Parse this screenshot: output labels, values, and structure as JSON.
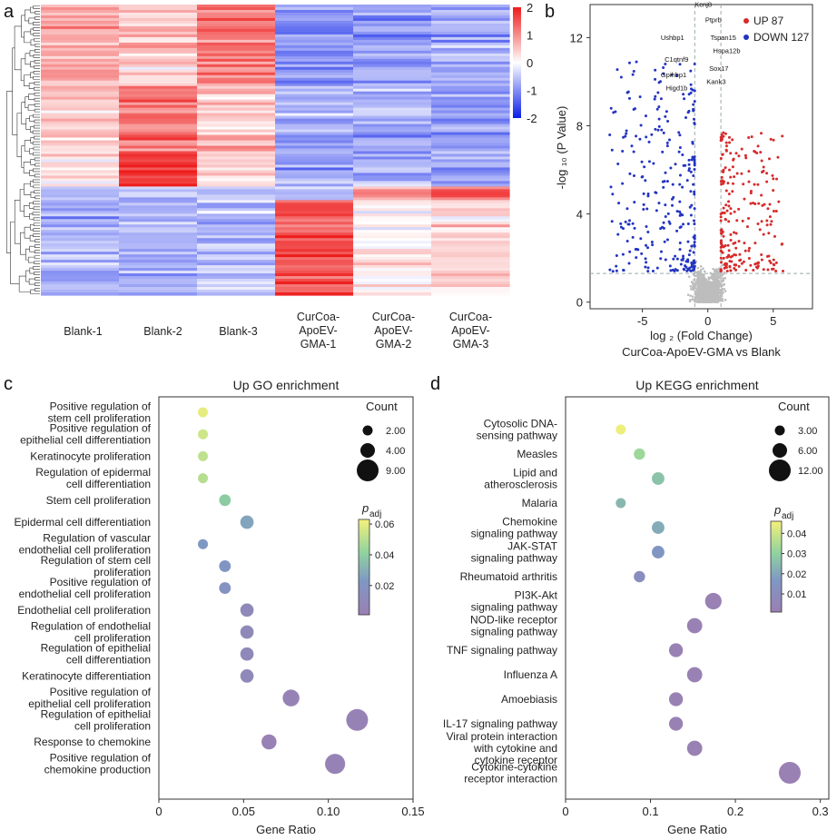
{
  "panel_letters": [
    "a",
    "b",
    "c",
    "d"
  ],
  "chart_data": [
    {
      "panel": "a",
      "type": "heatmap",
      "columns": [
        [
          "Blank-1"
        ],
        [
          "Blank-2"
        ],
        [
          "Blank-3"
        ],
        [
          "CurCoa-",
          "ApoEV-",
          "GMA-1"
        ],
        [
          "CurCoa-",
          "ApoEV-",
          "GMA-2"
        ],
        [
          "CurCoa-",
          "ApoEV-",
          "GMA-3"
        ]
      ],
      "colorbar": {
        "min": -2,
        "max": 2,
        "ticks": [
          "2",
          "1",
          "0",
          "-1",
          "-2"
        ],
        "colors": [
          "#0a1ee8",
          "#ffffff",
          "#ee1c1c"
        ]
      },
      "blocks": [
        {
          "rows": 30,
          "profile": [
            0.7,
            0.45,
            1.1,
            -1.0,
            -0.8,
            -0.7
          ]
        },
        {
          "rows": 25,
          "profile": [
            0.4,
            1.2,
            0.6,
            -0.7,
            -0.7,
            -0.9
          ]
        },
        {
          "rows": 12,
          "profile": [
            0.2,
            1.7,
            0.3,
            -0.8,
            -0.7,
            -0.8
          ]
        },
        {
          "rows": 5,
          "profile": [
            -0.7,
            -0.5,
            -0.5,
            -0.6,
            0.9,
            1.4
          ]
        },
        {
          "rows": 35,
          "profile": [
            -0.7,
            -0.7,
            -0.6,
            1.5,
            0.1,
            0.3
          ]
        }
      ],
      "dendrogram": true
    },
    {
      "panel": "b",
      "type": "scatter",
      "subtype": "volcano",
      "xlabel": "log ₂ (Fold Change)",
      "ylabel": "-log ₁₀ (P Value)",
      "subtitle": "CurCoa-ApoEV-GMA vs Blank",
      "xlim": [
        -9,
        8
      ],
      "ylim": [
        -0.3,
        13.5
      ],
      "xticks": [
        -5,
        0,
        5
      ],
      "yticks": [
        0,
        4,
        8,
        12
      ],
      "thresholds": {
        "x": [
          -1,
          1
        ],
        "y": 1.3
      },
      "legend": [
        {
          "label": "UP",
          "count": "87",
          "color": "#d62b2b"
        },
        {
          "label": "DOWN",
          "count": "127",
          "color": "#2334c2"
        }
      ],
      "point_colors": {
        "up": "#d62b2b",
        "down": "#2334c2",
        "ns": "#bdbdbd"
      },
      "gene_labels": [
        {
          "name": "Kcnj8",
          "x": -1.0,
          "y": 13.4
        },
        {
          "name": "Ptprb",
          "x": -0.2,
          "y": 12.7
        },
        {
          "name": "Ushbp1",
          "x": -3.6,
          "y": 11.9
        },
        {
          "name": "Tspan15",
          "x": 0.2,
          "y": 11.9
        },
        {
          "name": "Hspa12b",
          "x": 0.4,
          "y": 11.3
        },
        {
          "name": "C1qtnf9",
          "x": -3.3,
          "y": 10.9
        },
        {
          "name": "Sox17",
          "x": 0.1,
          "y": 10.5
        },
        {
          "name": "Gpihbp1",
          "x": -3.6,
          "y": 10.2
        },
        {
          "name": "Kank3",
          "x": -0.1,
          "y": 9.9
        },
        {
          "name": "Higd1b",
          "x": -3.2,
          "y": 9.6
        }
      ]
    },
    {
      "panel": "c",
      "type": "scatter",
      "subtype": "bubble",
      "title": "Up GO enrichment",
      "xlabel": "Gene Ratio",
      "xlim": [
        0,
        0.15
      ],
      "xticks": [
        "0",
        "0.05",
        "0.10",
        "0.15"
      ],
      "size_legend": {
        "title": "Count",
        "entries": [
          {
            "label": "2.00",
            "r": 5.5
          },
          {
            "label": "4.00",
            "r": 8
          },
          {
            "label": "9.00",
            "r": 12
          }
        ]
      },
      "color_legend": {
        "title": "p",
        "subscript": "adj",
        "ticks": [
          "0.06",
          "0.04",
          "0.02"
        ],
        "min": 0.001,
        "max": 0.063
      },
      "terms": [
        {
          "label": [
            "Positive regulation of",
            "stem cell proliferation"
          ],
          "ratio": 0.026,
          "count": 2,
          "padj": 0.06
        },
        {
          "label": [
            "Positive regulation of",
            "epithelial cell differentiation"
          ],
          "ratio": 0.026,
          "count": 2,
          "padj": 0.055
        },
        {
          "label": [
            "Keratinocyte proliferation"
          ],
          "ratio": 0.026,
          "count": 2,
          "padj": 0.052
        },
        {
          "label": [
            "Regulation of epidermal",
            "cell differentiation"
          ],
          "ratio": 0.026,
          "count": 2,
          "padj": 0.05
        },
        {
          "label": [
            "Stem cell proliferation"
          ],
          "ratio": 0.039,
          "count": 3,
          "padj": 0.04
        },
        {
          "label": [
            "Epidermal cell differentiation"
          ],
          "ratio": 0.052,
          "count": 4,
          "padj": 0.026
        },
        {
          "label": [
            "Regulation of vascular",
            "endothelial cell proliferation"
          ],
          "ratio": 0.026,
          "count": 2,
          "padj": 0.022
        },
        {
          "label": [
            "Regulation of stem cell",
            "proliferation"
          ],
          "ratio": 0.039,
          "count": 3,
          "padj": 0.02
        },
        {
          "label": [
            "Positive regulation of",
            "endothelial cell proliferation"
          ],
          "ratio": 0.039,
          "count": 3,
          "padj": 0.018
        },
        {
          "label": [
            "Endothelial cell proliferation"
          ],
          "ratio": 0.052,
          "count": 4,
          "padj": 0.01
        },
        {
          "label": [
            "Regulation of endothelial",
            "cell proliferation"
          ],
          "ratio": 0.052,
          "count": 4,
          "padj": 0.01
        },
        {
          "label": [
            "Regulation of epithelial",
            "cell differentiation"
          ],
          "ratio": 0.052,
          "count": 4,
          "padj": 0.01
        },
        {
          "label": [
            "Keratinocyte differentiation"
          ],
          "ratio": 0.052,
          "count": 4,
          "padj": 0.01
        },
        {
          "label": [
            "Positive regulation of",
            "epithelial cell proliferation"
          ],
          "ratio": 0.078,
          "count": 6,
          "padj": 0.004
        },
        {
          "label": [
            "Regulation of epithelial",
            "cell proliferation"
          ],
          "ratio": 0.117,
          "count": 9,
          "padj": 0.004
        },
        {
          "label": [
            "Response to chemokine"
          ],
          "ratio": 0.065,
          "count": 5,
          "padj": 0.003
        },
        {
          "label": [
            "Positive regulation of",
            "chemokine production"
          ],
          "ratio": 0.104,
          "count": 8,
          "padj": 0.004
        }
      ]
    },
    {
      "panel": "d",
      "type": "scatter",
      "subtype": "bubble",
      "title": "Up KEGG enrichment",
      "xlabel": "Gene Ratio",
      "xlim": [
        0,
        0.31
      ],
      "xticks": [
        "0",
        "0.1",
        "0.2",
        "0.3"
      ],
      "size_legend": {
        "title": "Count",
        "entries": [
          {
            "label": "3.00",
            "r": 5.5
          },
          {
            "label": "6.00",
            "r": 8
          },
          {
            "label": "12.00",
            "r": 12
          }
        ]
      },
      "color_legend": {
        "title": "p",
        "subscript": "adj",
        "ticks": [
          "0.04",
          "0.03",
          "0.02",
          "0.01"
        ],
        "min": 0.001,
        "max": 0.046
      },
      "terms": [
        {
          "label": [
            "Cytosolic DNA-",
            "sensing pathway"
          ],
          "ratio": 0.065,
          "count": 3,
          "padj": 0.045
        },
        {
          "label": [
            "Measles"
          ],
          "ratio": 0.087,
          "count": 4,
          "padj": 0.033
        },
        {
          "label": [
            "Lipid and",
            "atherosclerosis"
          ],
          "ratio": 0.109,
          "count": 5,
          "padj": 0.027
        },
        {
          "label": [
            "Malaria"
          ],
          "ratio": 0.065,
          "count": 3,
          "padj": 0.024
        },
        {
          "label": [
            "Chemokine",
            "signaling pathway"
          ],
          "ratio": 0.109,
          "count": 5,
          "padj": 0.021
        },
        {
          "label": [
            "JAK-STAT",
            "signaling pathway"
          ],
          "ratio": 0.109,
          "count": 5,
          "padj": 0.015
        },
        {
          "label": [
            "Rheumatoid arthritis"
          ],
          "ratio": 0.087,
          "count": 4,
          "padj": 0.01
        },
        {
          "label": [
            "PI3K-Akt",
            "signaling pathway"
          ],
          "ratio": 0.174,
          "count": 8,
          "padj": 0.002
        },
        {
          "label": [
            "NOD-like receptor",
            "signaling pathway"
          ],
          "ratio": 0.152,
          "count": 7,
          "padj": 0.002
        },
        {
          "label": [
            "TNF signaling pathway"
          ],
          "ratio": 0.13,
          "count": 6,
          "padj": 0.002
        },
        {
          "label": [
            "Influenza A"
          ],
          "ratio": 0.152,
          "count": 7,
          "padj": 0.002
        },
        {
          "label": [
            "Amoebiasis"
          ],
          "ratio": 0.13,
          "count": 6,
          "padj": 0.002
        },
        {
          "label": [
            "IL-17 signaling pathway"
          ],
          "ratio": 0.13,
          "count": 6,
          "padj": 0.002
        },
        {
          "label": [
            "Viral protein interaction",
            "with cytokine and",
            "cytokine receptor"
          ],
          "ratio": 0.152,
          "count": 7,
          "padj": 0.002
        },
        {
          "label": [
            "Cytokine-cytokine",
            "receptor interaction"
          ],
          "ratio": 0.264,
          "count": 12,
          "padj": 0.002
        }
      ]
    }
  ]
}
